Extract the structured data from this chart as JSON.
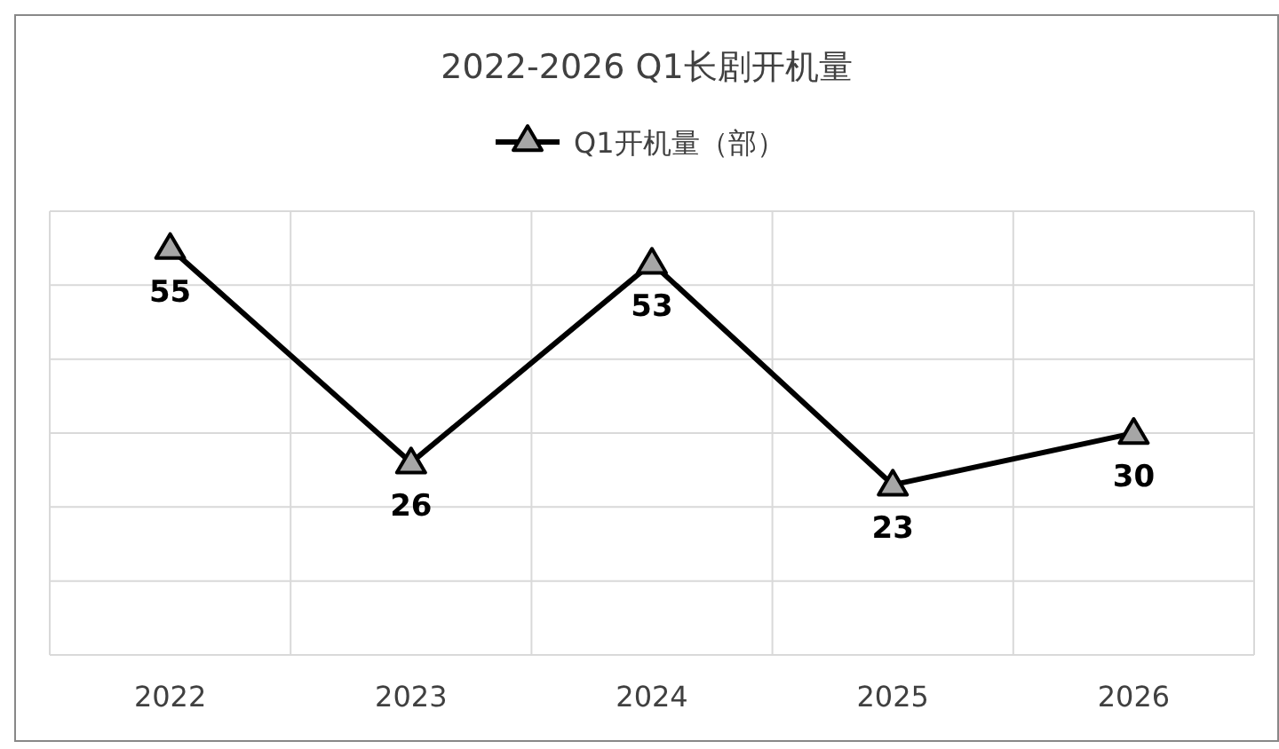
{
  "chart_data": {
    "type": "line",
    "title": "2022-2026 Q1长剧开机量",
    "categories": [
      "2022",
      "2023",
      "2024",
      "2025",
      "2026"
    ],
    "series": [
      {
        "name": "Q1开机量（部）",
        "color": "#000000",
        "values": [
          55,
          26,
          53,
          23,
          30
        ]
      }
    ],
    "ylim": [
      0,
      60
    ],
    "yticks": [
      {
        "value": 0,
        "label": null
      },
      {
        "value": 10,
        "label": null
      },
      {
        "value": 20,
        "label": null
      },
      {
        "value": 30,
        "label": null
      },
      {
        "value": 40,
        "label": null
      },
      {
        "value": 50,
        "label": null
      },
      {
        "value": 60,
        "label": null
      }
    ],
    "tick_labels": "x",
    "grid": true,
    "legend": "top",
    "marker": "triangle",
    "line_style": "solid",
    "data_labels": true
  }
}
